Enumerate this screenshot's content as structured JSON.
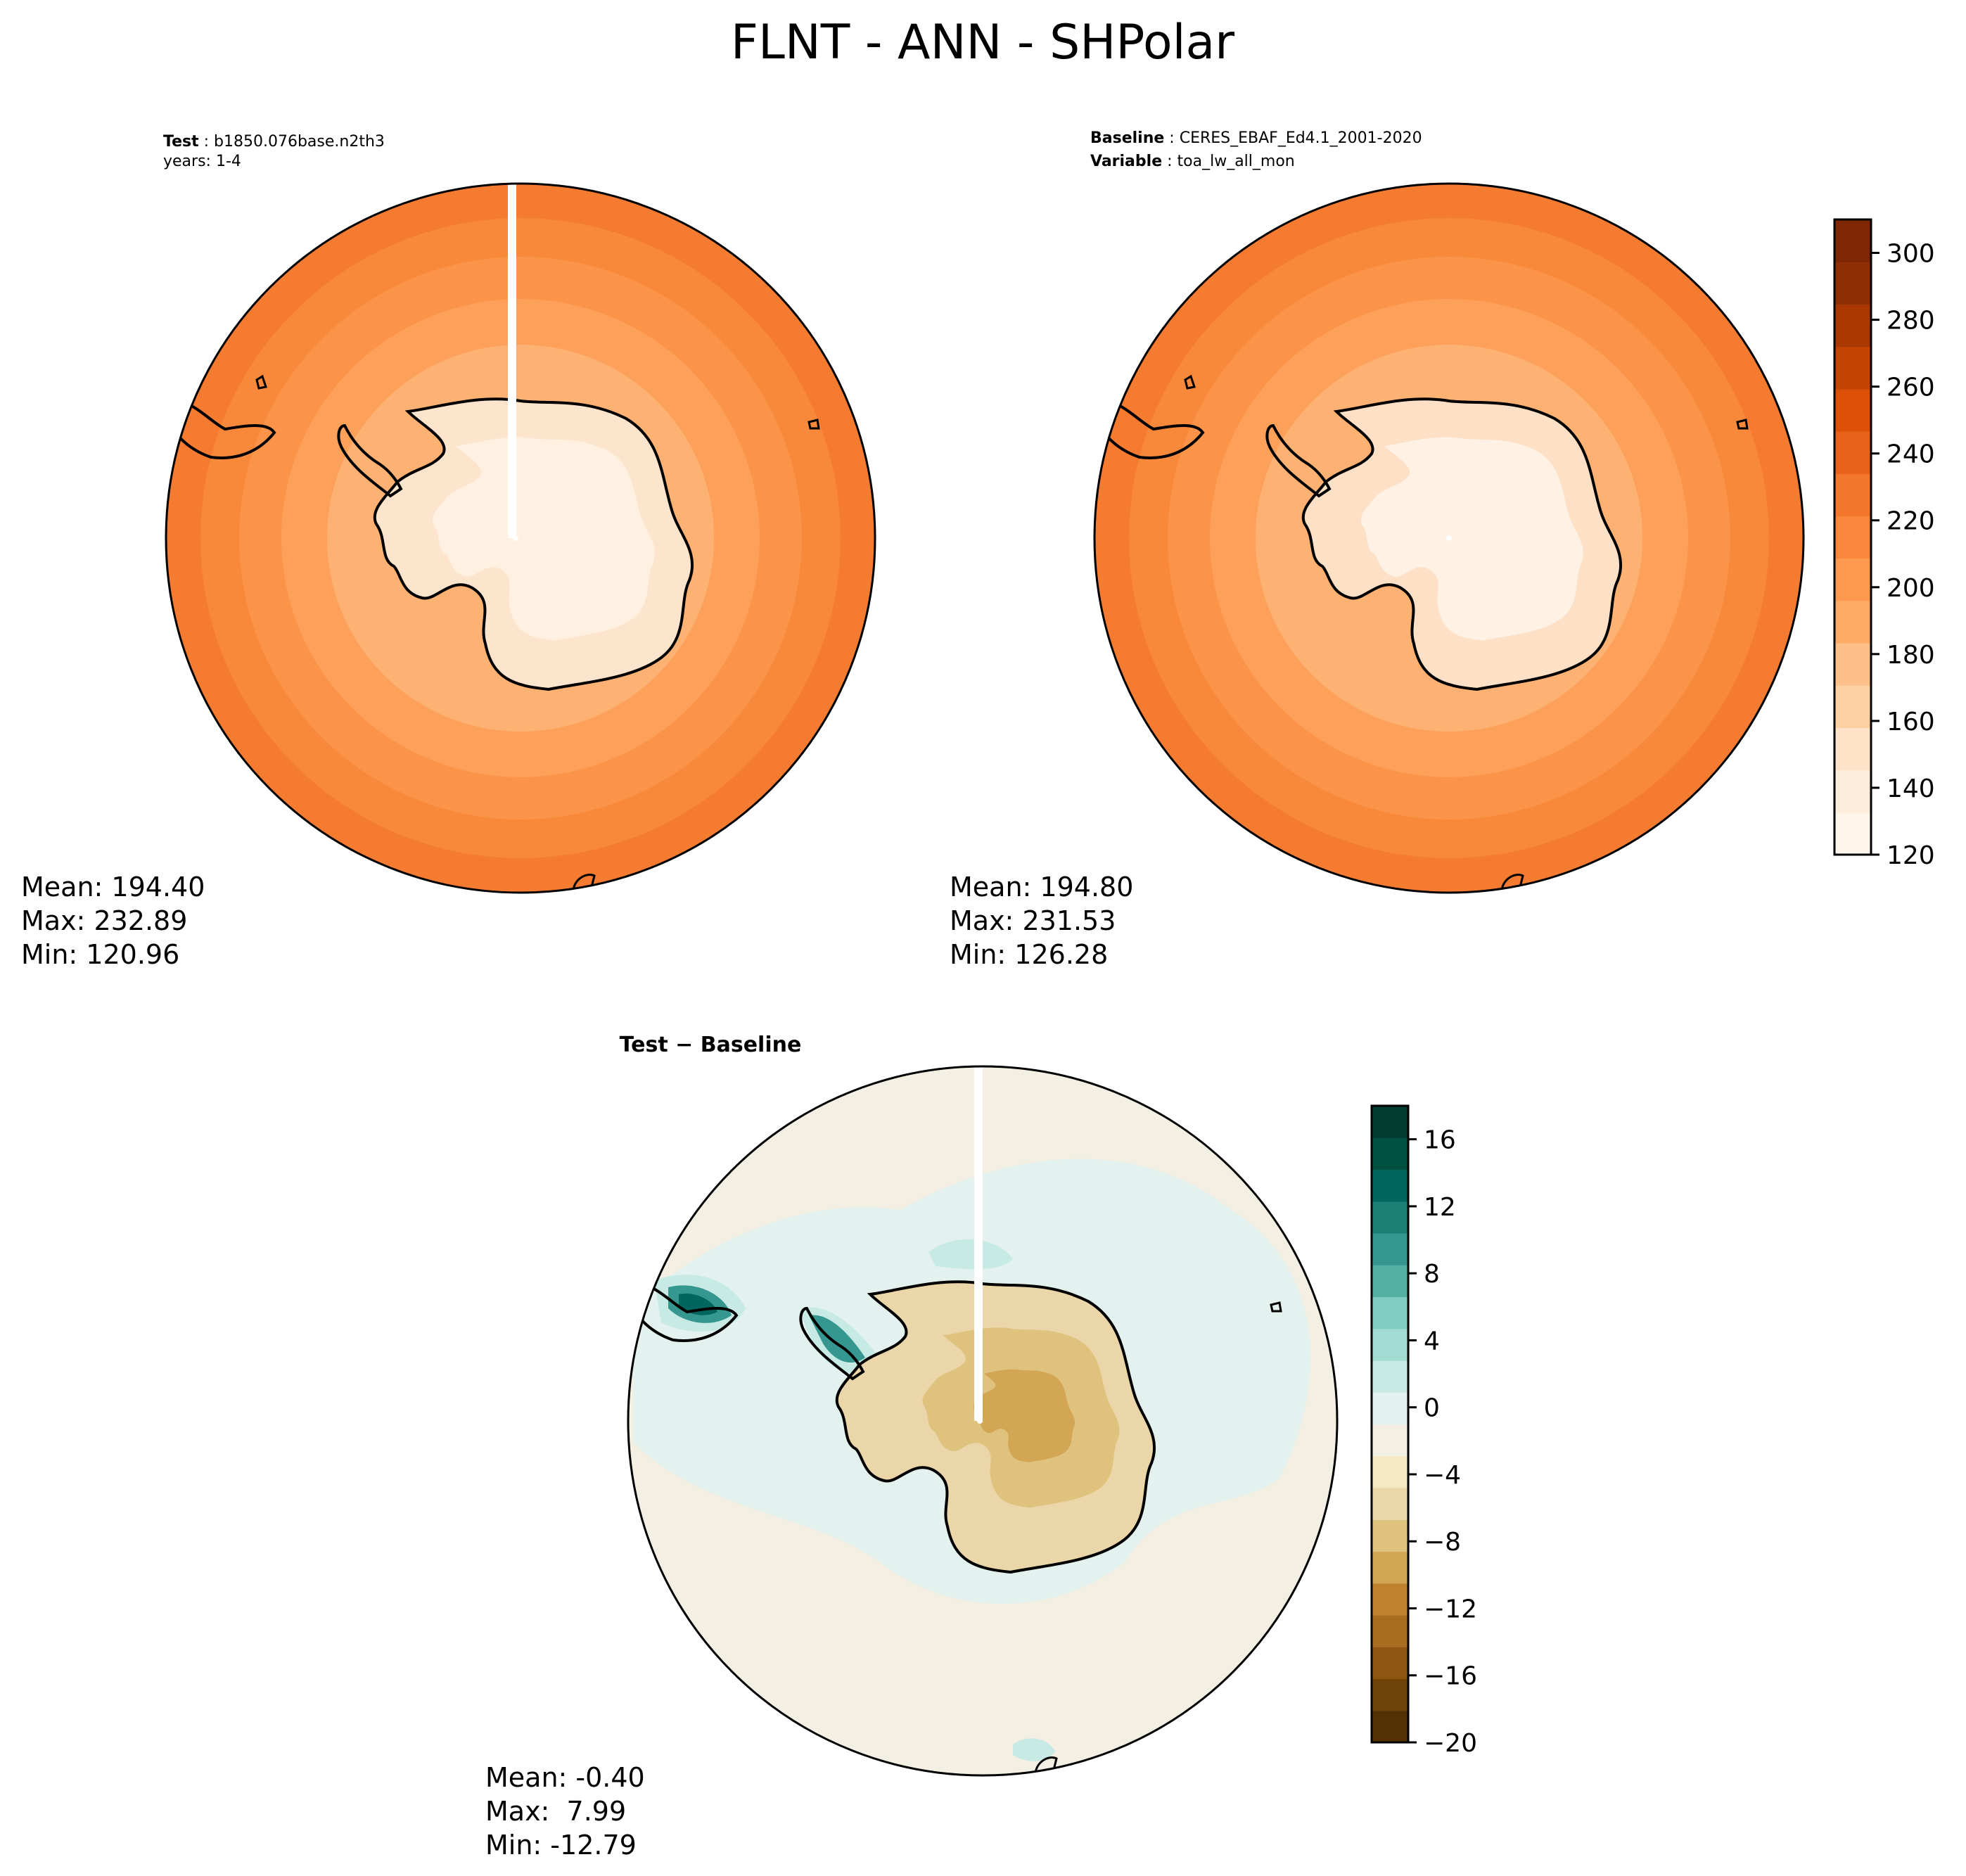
{
  "figure": {
    "title": "FLNT - ANN - SHPolar"
  },
  "panels": {
    "test": {
      "label_bold": "Test",
      "label_value": "b1850.076base.n2th3",
      "line2": "years: 1-4",
      "stats": {
        "mean": "Mean: 194.40",
        "max": "Max: 232.89",
        "min": "Min: 120.96"
      }
    },
    "baseline": {
      "label_bold": "Baseline",
      "label_value": "CERES_EBAF_Ed4.1_2001-2020",
      "var_bold": "Variable",
      "var_value": "toa_lw_all_mon",
      "stats": {
        "mean": "Mean: 194.80",
        "max": "Max: 231.53",
        "min": "Min: 126.28"
      }
    },
    "diff": {
      "title": "Test − Baseline",
      "stats": {
        "mean": "Mean: -0.40",
        "max": "Max:  7.99",
        "min": "Min: -12.79"
      }
    }
  },
  "colorbars": {
    "main": {
      "ticks": [
        "120",
        "140",
        "160",
        "180",
        "200",
        "220",
        "240",
        "260",
        "280",
        "300"
      ],
      "range": [
        120,
        310
      ],
      "colors": [
        "#fff5eb",
        "#feeddc",
        "#fee3c8",
        "#fdd1a4",
        "#fdc08b",
        "#fdac68",
        "#fd9a4f",
        "#f9883d",
        "#f3772d",
        "#e9621b",
        "#dc5008",
        "#c44402",
        "#aa3803",
        "#8f2f04",
        "#7f2704"
      ]
    },
    "diff": {
      "ticks": [
        "−20",
        "−16",
        "−12",
        "−8",
        "−4",
        "0",
        "4",
        "8",
        "12",
        "16"
      ],
      "range": [
        -20,
        18
      ],
      "colors": [
        "#543005",
        "#6f4209",
        "#8c5510",
        "#a86d1e",
        "#bf812d",
        "#d2a654",
        "#dfc27d",
        "#ead6a8",
        "#f6e8c3",
        "#f3efe2",
        "#e3f1ef",
        "#c7eae5",
        "#a2dcd2",
        "#80cdc1",
        "#55b0a4",
        "#35978f",
        "#1d7f76",
        "#01665e",
        "#00503f",
        "#003c30"
      ]
    }
  },
  "map_colors": {
    "test": {
      "outer": "#f47b2f",
      "ring1": "#f8883a",
      "ring2": "#fb9448",
      "ring3": "#fda05a",
      "ring4": "#fdb274",
      "coast": "#fde4cc",
      "interior": "#fff0e2"
    },
    "baseline": {
      "outer": "#f47b2f",
      "ring1": "#f8883a",
      "ring2": "#fb9448",
      "ring3": "#fda05a",
      "ring4": "#fdb274",
      "coast": "#fde0c5",
      "interior": "#fff1e4"
    },
    "diff": {
      "base": "#f3efe2",
      "teal_light": "#e3f1ef",
      "teal_mid": "#c7eae5",
      "teal_dark": "#35978f",
      "teal_darker": "#01665e",
      "brown_light": "#ead6a8",
      "brown_mid": "#dfc27d",
      "brown_dark": "#d2a654"
    }
  }
}
